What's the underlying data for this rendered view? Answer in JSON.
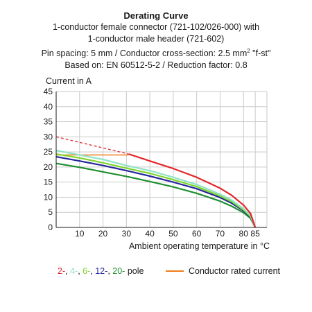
{
  "header": {
    "title": "Derating Curve",
    "line1": "1-conductor female connector (721-102/026-000) with",
    "line2": "1-conductor male header (721-602)",
    "line3_prefix": "Pin spacing: 5 mm / Conductor cross-section: 2.5 mm",
    "line3_sup": "2",
    "line3_suffix": " \"f-st\"",
    "line4": "Based on: EN 60512-5-2 / Reduction factor: 0.8"
  },
  "legend": {
    "poles": [
      {
        "text": "2-",
        "color": "#e3262b"
      },
      {
        "text": ", ",
        "color": "#1a1a1a"
      },
      {
        "text": "4-",
        "color": "#8fe3c6"
      },
      {
        "text": ", ",
        "color": "#1a1a1a"
      },
      {
        "text": "6-",
        "color": "#7fd52c"
      },
      {
        "text": ", ",
        "color": "#1a1a1a"
      },
      {
        "text": "12-",
        "color": "#25259e"
      },
      {
        "text": ", ",
        "color": "#1a1a1a"
      },
      {
        "text": "20-",
        "color": "#1e8f2f"
      },
      {
        "text": " pole",
        "color": "#1a1a1a"
      }
    ],
    "rated_label": "Conductor rated current",
    "rated_color": "#f07b1a"
  },
  "chart_data": {
    "type": "line",
    "xlabel": "Ambient operating temperature in °C",
    "ylabel": "Current in A",
    "xlim": [
      0,
      90
    ],
    "ylim": [
      0,
      45
    ],
    "x_ticks": [
      10,
      20,
      30,
      40,
      50,
      60,
      70,
      80,
      85
    ],
    "y_ticks": [
      0,
      5,
      10,
      15,
      20,
      25,
      30,
      35,
      40,
      45
    ],
    "grid": true,
    "series": [
      {
        "name": "2-",
        "color": "#e3262b",
        "dashed_until": 31,
        "points": [
          [
            0,
            30
          ],
          [
            31,
            24.3
          ],
          [
            40,
            22
          ],
          [
            50,
            19.5
          ],
          [
            60,
            16.6
          ],
          [
            70,
            13
          ],
          [
            75,
            10.6
          ],
          [
            80,
            7.4
          ],
          [
            83,
            4.6
          ],
          [
            85,
            0
          ]
        ]
      },
      {
        "name": "4-",
        "color": "#8fe3c6",
        "points": [
          [
            0,
            25.5
          ],
          [
            10,
            24
          ],
          [
            20,
            22.5
          ],
          [
            30,
            20.5
          ],
          [
            40,
            18.8
          ],
          [
            50,
            16.6
          ],
          [
            60,
            14.2
          ],
          [
            70,
            11
          ],
          [
            75,
            9
          ],
          [
            80,
            6.2
          ],
          [
            83,
            3.9
          ],
          [
            85,
            0
          ]
        ]
      },
      {
        "name": "6-",
        "color": "#7fd52c",
        "points": [
          [
            0,
            24.3
          ],
          [
            10,
            23
          ],
          [
            20,
            21.4
          ],
          [
            30,
            19.6
          ],
          [
            40,
            17.9
          ],
          [
            50,
            15.8
          ],
          [
            60,
            13.5
          ],
          [
            70,
            10.4
          ],
          [
            75,
            8.5
          ],
          [
            80,
            5.8
          ],
          [
            83,
            3.6
          ],
          [
            85,
            0
          ]
        ]
      },
      {
        "name": "12-",
        "color": "#25259e",
        "points": [
          [
            0,
            23.4
          ],
          [
            10,
            22
          ],
          [
            20,
            20.5
          ],
          [
            30,
            18.8
          ],
          [
            40,
            17
          ],
          [
            50,
            15
          ],
          [
            60,
            12.8
          ],
          [
            70,
            9.9
          ],
          [
            75,
            8
          ],
          [
            80,
            5.5
          ],
          [
            83,
            3.4
          ],
          [
            85,
            0
          ]
        ]
      },
      {
        "name": "20-",
        "color": "#1e8f2f",
        "points": [
          [
            0,
            21.2
          ],
          [
            10,
            19.9
          ],
          [
            20,
            18.4
          ],
          [
            30,
            16.9
          ],
          [
            40,
            15.2
          ],
          [
            50,
            13.4
          ],
          [
            60,
            11.3
          ],
          [
            70,
            8.7
          ],
          [
            75,
            7
          ],
          [
            80,
            4.9
          ],
          [
            83,
            3
          ],
          [
            85,
            0
          ]
        ]
      },
      {
        "name": "Conductor rated current",
        "color": "#f07b1a",
        "points": [
          [
            0,
            24
          ],
          [
            31,
            24
          ]
        ]
      }
    ]
  }
}
